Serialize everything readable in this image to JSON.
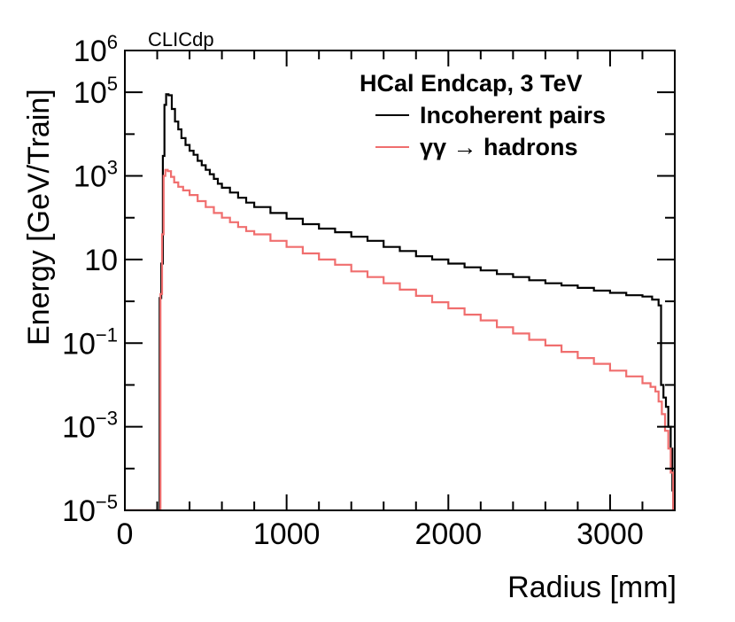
{
  "chart_data": {
    "type": "line",
    "style": "step histogram",
    "tag": "CLICdp",
    "title": "HCal Endcap, 3 TeV",
    "xlabel": "Radius [mm]",
    "ylabel": "Energy [GeV/Train]",
    "xlim": [
      0,
      3400
    ],
    "ylim": [
      1e-05,
      1000000.0
    ],
    "yscale": "log",
    "xticks": [
      {
        "value": 0,
        "label": "0"
      },
      {
        "value": 1000,
        "label": "1000"
      },
      {
        "value": 2000,
        "label": "2000"
      },
      {
        "value": 3000,
        "label": "3000"
      }
    ],
    "yticks": [
      {
        "value": 1e-05,
        "base": "10",
        "exp": "−5",
        "label": "10−5"
      },
      {
        "value": 0.001,
        "base": "10",
        "exp": "−3",
        "label": "10−3"
      },
      {
        "value": 0.1,
        "base": "10",
        "exp": "−1",
        "label": "10−1"
      },
      {
        "value": 10,
        "base": "10",
        "exp": "",
        "label": "10"
      },
      {
        "value": 1000.0,
        "base": "10",
        "exp": "3",
        "label": "103"
      },
      {
        "value": 100000.0,
        "base": "10",
        "exp": "5",
        "label": "105"
      },
      {
        "value": 1000000.0,
        "base": "10",
        "exp": "6",
        "label": "106"
      }
    ],
    "legend": {
      "position": "top-right",
      "entries": [
        {
          "series": 0,
          "label": "Incoherent pairs"
        },
        {
          "series": 1,
          "label": "γγ  → hadrons"
        }
      ]
    },
    "series": [
      {
        "name": "Incoherent pairs",
        "color": "#000000",
        "points": [
          [
            0,
            1e-05
          ],
          [
            210,
            1e-05
          ],
          [
            215,
            1.2
          ],
          [
            225,
            8
          ],
          [
            235,
            3000
          ],
          [
            245,
            50000
          ],
          [
            255,
            90000
          ],
          [
            270,
            85000
          ],
          [
            290,
            40000
          ],
          [
            310,
            20000
          ],
          [
            330,
            13000
          ],
          [
            350,
            8000
          ],
          [
            375,
            5500
          ],
          [
            400,
            4000
          ],
          [
            425,
            3200
          ],
          [
            450,
            2300
          ],
          [
            475,
            1800
          ],
          [
            500,
            1400
          ],
          [
            525,
            1100
          ],
          [
            550,
            850
          ],
          [
            575,
            650
          ],
          [
            600,
            520
          ],
          [
            650,
            400
          ],
          [
            700,
            300
          ],
          [
            750,
            230
          ],
          [
            800,
            180
          ],
          [
            900,
            130
          ],
          [
            1000,
            95
          ],
          [
            1100,
            70
          ],
          [
            1200,
            55
          ],
          [
            1300,
            45
          ],
          [
            1400,
            35
          ],
          [
            1500,
            28
          ],
          [
            1600,
            20
          ],
          [
            1700,
            16
          ],
          [
            1800,
            12
          ],
          [
            1900,
            10
          ],
          [
            2000,
            8
          ],
          [
            2100,
            6.5
          ],
          [
            2200,
            5.5
          ],
          [
            2300,
            4.5
          ],
          [
            2400,
            3.8
          ],
          [
            2500,
            3.2
          ],
          [
            2600,
            2.7
          ],
          [
            2700,
            2.4
          ],
          [
            2800,
            2.1
          ],
          [
            2900,
            1.8
          ],
          [
            3000,
            1.6
          ],
          [
            3100,
            1.4
          ],
          [
            3200,
            1.3
          ],
          [
            3260,
            1.1
          ],
          [
            3300,
            0.8
          ],
          [
            3315,
            0.01
          ],
          [
            3330,
            0.005
          ],
          [
            3345,
            0.003
          ],
          [
            3360,
            0.001
          ],
          [
            3375,
            0.0003
          ],
          [
            3385,
            3e-05
          ],
          [
            3390,
            1e-05
          ]
        ]
      },
      {
        "name": "γγ  → hadrons",
        "color": "#f06e6e",
        "points": [
          [
            0,
            1e-05
          ],
          [
            215,
            1e-05
          ],
          [
            220,
            1.5
          ],
          [
            230,
            40
          ],
          [
            240,
            1000
          ],
          [
            250,
            1400
          ],
          [
            265,
            1300
          ],
          [
            285,
            950
          ],
          [
            305,
            700
          ],
          [
            330,
            550
          ],
          [
            360,
            450
          ],
          [
            400,
            350
          ],
          [
            450,
            250
          ],
          [
            500,
            180
          ],
          [
            550,
            130
          ],
          [
            600,
            100
          ],
          [
            650,
            78
          ],
          [
            700,
            60
          ],
          [
            750,
            48
          ],
          [
            800,
            40
          ],
          [
            900,
            28
          ],
          [
            1000,
            20
          ],
          [
            1100,
            14
          ],
          [
            1200,
            10
          ],
          [
            1300,
            7.5
          ],
          [
            1400,
            5.2
          ],
          [
            1500,
            3.8
          ],
          [
            1600,
            2.7
          ],
          [
            1700,
            1.9
          ],
          [
            1800,
            1.35
          ],
          [
            1900,
            0.95
          ],
          [
            2000,
            0.68
          ],
          [
            2100,
            0.48
          ],
          [
            2200,
            0.35
          ],
          [
            2300,
            0.24
          ],
          [
            2400,
            0.17
          ],
          [
            2500,
            0.12
          ],
          [
            2600,
            0.088
          ],
          [
            2700,
            0.062
          ],
          [
            2800,
            0.044
          ],
          [
            2900,
            0.032
          ],
          [
            3000,
            0.022
          ],
          [
            3100,
            0.016
          ],
          [
            3200,
            0.011
          ],
          [
            3250,
            0.009
          ],
          [
            3280,
            0.007
          ],
          [
            3300,
            0.004
          ],
          [
            3320,
            0.002
          ],
          [
            3340,
            0.0008
          ],
          [
            3360,
            0.0003
          ],
          [
            3375,
            8e-05
          ],
          [
            3390,
            1e-05
          ]
        ]
      }
    ]
  }
}
